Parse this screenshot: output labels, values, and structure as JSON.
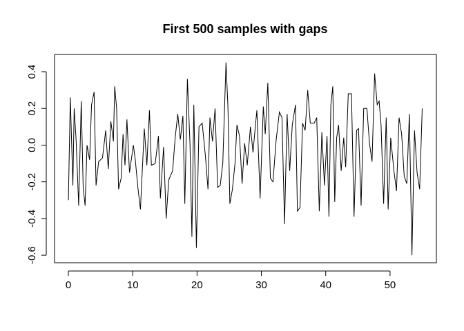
{
  "chart_data": {
    "type": "line",
    "title": "First 500 samples with gaps",
    "x": [
      0,
      0.3,
      0.7,
      0.9,
      1.2,
      1.6,
      2.0,
      2.3,
      2.6,
      2.9,
      3.3,
      3.6,
      4.0,
      4.3,
      4.7,
      5.3,
      5.8,
      6.2,
      6.6,
      7.0,
      7.2,
      7.5,
      7.8,
      8.2,
      8.5,
      8.8,
      9.1,
      9.5,
      10.1,
      10.4,
      10.8,
      11.2,
      11.8,
      12.2,
      12.6,
      12.9,
      13.5,
      14.0,
      14.3,
      14.8,
      15.2,
      15.6,
      16.2,
      16.6,
      17.0,
      17.4,
      17.8,
      18.1,
      18.5,
      18.9,
      19.2,
      19.5,
      19.9,
      20.3,
      20.8,
      21.3,
      21.7,
      22.0,
      22.4,
      22.8,
      23.2,
      23.6,
      24.0,
      24.5,
      24.8,
      25.1,
      25.5,
      25.9,
      26.2,
      26.6,
      27.0,
      27.4,
      27.8,
      28.3,
      28.7,
      29.0,
      29.3,
      29.8,
      30.3,
      30.6,
      31.0,
      31.4,
      31.8,
      32.3,
      32.8,
      33.2,
      33.6,
      34.0,
      34.4,
      34.8,
      35.3,
      35.6,
      36.0,
      36.4,
      36.8,
      37.2,
      37.6,
      38.2,
      38.6,
      39.0,
      39.4,
      39.8,
      40.2,
      40.5,
      40.8,
      41.1,
      41.4,
      41.7,
      42.0,
      42.4,
      42.8,
      43.1,
      43.5,
      44.0,
      44.4,
      44.8,
      45.1,
      45.5,
      45.9,
      46.4,
      46.8,
      47.2,
      47.6,
      48.0,
      48.3,
      48.6,
      49.0,
      49.4,
      49.7,
      50.1,
      50.6,
      51.0,
      51.4,
      51.8,
      52.2,
      52.6,
      53.0,
      53.4,
      53.8,
      54.2,
      54.6,
      55.0
    ],
    "values": [
      -0.3,
      0.26,
      -0.22,
      0.2,
      0.03,
      -0.33,
      0.24,
      -0.23,
      -0.33,
      0.0,
      -0.08,
      0.22,
      0.29,
      -0.22,
      -0.09,
      -0.07,
      0.08,
      -0.13,
      0.13,
      0.02,
      0.32,
      0.2,
      -0.24,
      -0.18,
      0.06,
      -0.11,
      0.14,
      -0.15,
      0.0,
      -0.08,
      -0.23,
      -0.35,
      0.09,
      -0.11,
      0.19,
      -0.11,
      -0.1,
      0.05,
      -0.29,
      -0.01,
      -0.4,
      -0.19,
      -0.14,
      0.04,
      0.17,
      0.03,
      0.16,
      -0.32,
      0.36,
      0.01,
      -0.5,
      0.22,
      -0.56,
      0.1,
      0.12,
      -0.06,
      -0.24,
      0.15,
      0.02,
      0.2,
      -0.23,
      -0.22,
      -0.1,
      0.45,
      0.21,
      -0.32,
      -0.24,
      -0.1,
      0.11,
      0.05,
      -0.21,
      0.01,
      -0.11,
      0.1,
      -0.04,
      0.08,
      0.19,
      -0.29,
      0.21,
      0.06,
      0.34,
      -0.18,
      -0.2,
      0.03,
      0.18,
      0.15,
      -0.43,
      0.17,
      -0.14,
      0.11,
      0.22,
      -0.36,
      -0.34,
      0.12,
      0.08,
      0.3,
      0.12,
      0.12,
      0.15,
      -0.36,
      0.07,
      -0.22,
      0.05,
      -0.39,
      0.22,
      0.32,
      -0.31,
      0.04,
      0.11,
      -0.14,
      0.04,
      -0.12,
      0.28,
      0.28,
      -0.39,
      0.08,
      0.09,
      -0.33,
      0.2,
      0.2,
      0.01,
      -0.09,
      0.39,
      0.22,
      0.24,
      0.11,
      -0.32,
      0.15,
      -0.35,
      0.04,
      -0.14,
      -0.25,
      0.15,
      0.06,
      -0.17,
      -0.21,
      0.17,
      -0.6,
      0.08,
      -0.15,
      -0.24,
      0.2
    ],
    "color": "#000000",
    "xlim": [
      -2.15,
      57.2
    ],
    "xticks": [
      0,
      10,
      20,
      30,
      40,
      50
    ],
    "ylim": [
      -0.641,
      0.494
    ],
    "yticks": [
      -0.6,
      -0.4,
      -0.2,
      {
        "value": 0,
        "label": "0.0"
      },
      0.2,
      0.4
    ]
  }
}
